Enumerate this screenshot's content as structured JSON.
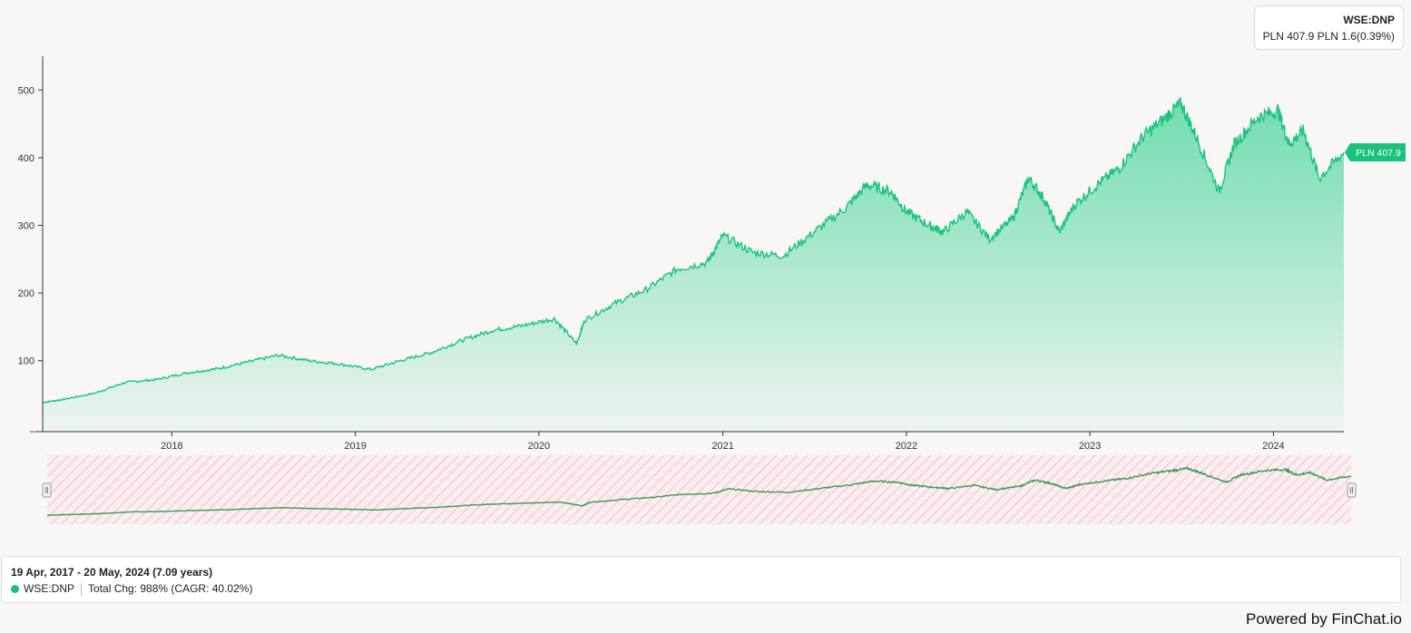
{
  "header": {
    "symbol": "WSE:DNP",
    "quote": "PLN 407.9 PLN 1.6(0.39%)"
  },
  "summary": {
    "range": "19 Apr, 2017 - 20 May, 2024 (7.09 years)",
    "symbol": "WSE:DNP",
    "change": "Total Chg: 988% (CAGR: 40.02%)"
  },
  "footer": {
    "powered_by": "Powered by FinChat.io"
  },
  "colors": {
    "line": "#19c37d",
    "area_top": "#6fdcb0",
    "navigator_line": "#3d9a52",
    "navigator_hatch": "#f3bcc4"
  },
  "chart_data": {
    "type": "area",
    "title": "",
    "xlabel": "",
    "ylabel": "",
    "ylim": [
      -5,
      550
    ],
    "yticks": [
      100,
      200,
      300,
      400,
      500
    ],
    "xlim": [
      "2017-04-19",
      "2024-05-20"
    ],
    "xticks": [
      "2018",
      "2019",
      "2020",
      "2021",
      "2022",
      "2023",
      "2024"
    ],
    "last_value_label": "PLN 407.9",
    "grid": false,
    "series": [
      {
        "name": "WSE:DNP",
        "x": [
          "2017-04-19",
          "2017-06-01",
          "2017-08-01",
          "2017-10-01",
          "2017-12-01",
          "2018-02-01",
          "2018-04-01",
          "2018-06-01",
          "2018-08-01",
          "2018-10-01",
          "2018-12-01",
          "2019-02-01",
          "2019-04-01",
          "2019-06-01",
          "2019-08-01",
          "2019-10-01",
          "2019-12-01",
          "2020-02-01",
          "2020-03-16",
          "2020-04-01",
          "2020-06-01",
          "2020-08-01",
          "2020-10-01",
          "2020-12-01",
          "2021-01-01",
          "2021-03-01",
          "2021-05-01",
          "2021-07-01",
          "2021-09-01",
          "2021-10-15",
          "2021-12-01",
          "2022-01-01",
          "2022-02-15",
          "2022-03-15",
          "2022-05-01",
          "2022-06-15",
          "2022-08-01",
          "2022-09-01",
          "2022-10-01",
          "2022-11-01",
          "2022-12-01",
          "2023-01-15",
          "2023-03-01",
          "2023-04-15",
          "2023-06-01",
          "2023-07-01",
          "2023-08-01",
          "2023-09-15",
          "2023-10-15",
          "2023-12-01",
          "2024-01-10",
          "2024-02-01",
          "2024-03-01",
          "2024-04-01",
          "2024-05-20"
        ],
        "values": [
          38,
          43,
          52,
          68,
          72,
          82,
          88,
          98,
          108,
          100,
          95,
          87,
          100,
          112,
          130,
          145,
          152,
          162,
          125,
          160,
          185,
          205,
          235,
          245,
          285,
          260,
          255,
          290,
          325,
          360,
          350,
          320,
          300,
          290,
          320,
          280,
          310,
          370,
          340,
          290,
          330,
          360,
          385,
          430,
          460,
          480,
          430,
          350,
          420,
          460,
          470,
          420,
          440,
          370,
          407.9
        ]
      }
    ]
  }
}
